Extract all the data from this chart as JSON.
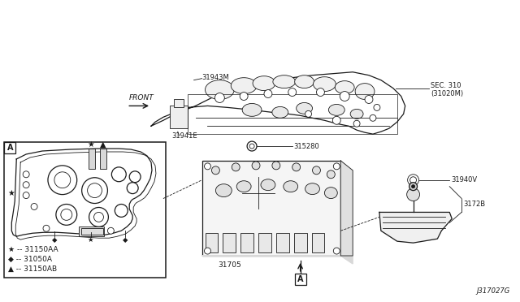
{
  "background_color": "#ffffff",
  "line_color": "#1a1a1a",
  "figure_width": 6.4,
  "figure_height": 3.72,
  "dpi": 100,
  "labels": {
    "front": "FRONT",
    "sec310_line1": "SEC. 310",
    "sec310_line2": "(31020M)",
    "part_31943M": "31943M",
    "part_31941E": "31941E",
    "part_315280": "315280",
    "part_31705": "31705",
    "part_31940V": "31940V",
    "part_3172B": "3172B",
    "legend_star": "★ -- 31150AA",
    "legend_diamond": "◆ -- 31050A",
    "legend_triangle": "▲ -- 31150AB",
    "box_a": "A",
    "diagram_id": "J317027G"
  }
}
